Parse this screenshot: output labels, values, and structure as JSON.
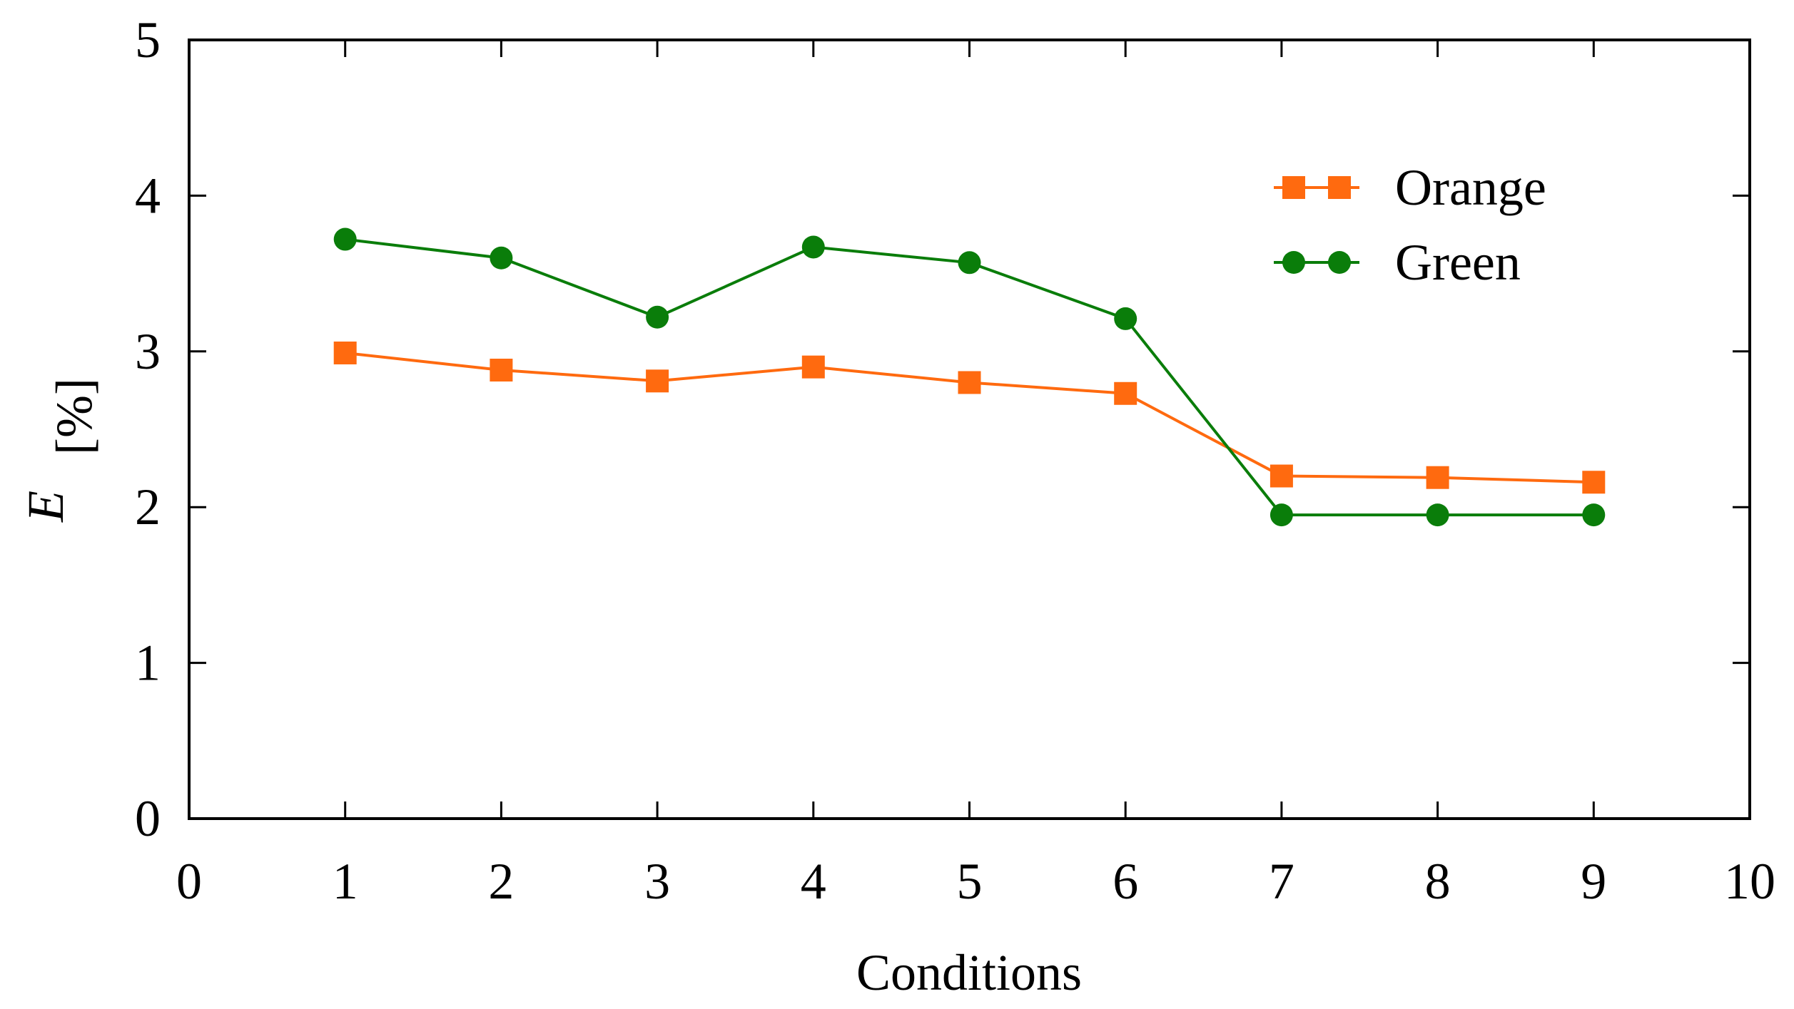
{
  "chart_data": {
    "type": "line",
    "title": "",
    "xlabel": "Conditions",
    "ylabel": {
      "symbol": "E",
      "unit": "[%]"
    },
    "xlim": [
      0,
      10
    ],
    "ylim": [
      0,
      5
    ],
    "xticks": [
      "0",
      "1",
      "2",
      "3",
      "4",
      "5",
      "6",
      "7",
      "8",
      "9",
      "10"
    ],
    "yticks": [
      "0",
      "1",
      "2",
      "3",
      "4",
      "5"
    ],
    "x": [
      1,
      2,
      3,
      4,
      5,
      6,
      7,
      8,
      9
    ],
    "grid": false,
    "legend_position": "top-right",
    "series": [
      {
        "name": "Orange",
        "color": "#ff6a0f",
        "marker": "square",
        "values": [
          2.99,
          2.88,
          2.81,
          2.9,
          2.8,
          2.73,
          2.2,
          2.19,
          2.16
        ]
      },
      {
        "name": "Green",
        "color": "#0a7d0a",
        "marker": "circle",
        "values": [
          3.72,
          3.6,
          3.22,
          3.67,
          3.57,
          3.21,
          1.95,
          1.95,
          1.95
        ]
      }
    ]
  }
}
